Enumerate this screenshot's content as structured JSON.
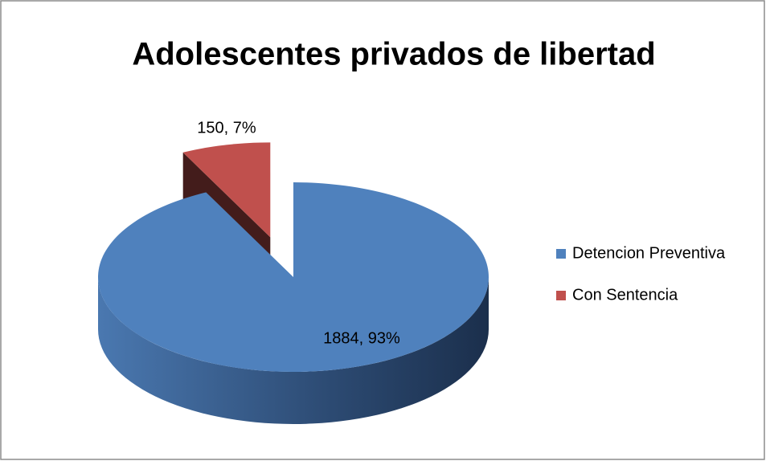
{
  "chart_data": {
    "type": "pie3d",
    "title": "Adolescentes privados de libertad",
    "categories": [
      "Detencion Preventiva",
      "Con Sentencia"
    ],
    "values": [
      1884,
      150
    ],
    "value_labels": [
      "1884, 93%",
      "150, 7%"
    ],
    "colors": [
      "#4f81bd",
      "#c0504d"
    ],
    "exploded": [
      false,
      true
    ],
    "legend": "right"
  }
}
